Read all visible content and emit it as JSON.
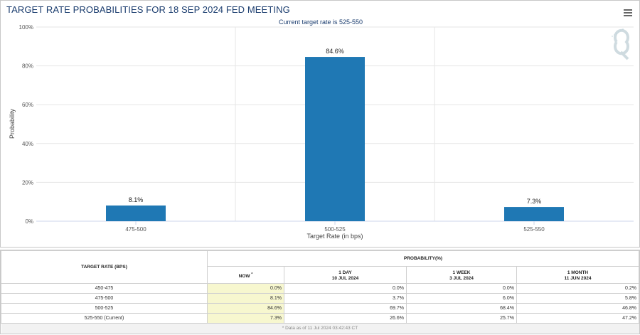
{
  "title": "TARGET RATE PROBABILITIES FOR 18 SEP 2024 FED MEETING",
  "menu_icon": "hamburger-menu-icon",
  "watermark_icon": "q-logo-icon",
  "chart_data": {
    "type": "bar",
    "subtitle": "Current target rate is 525-550",
    "categories": [
      "475-500",
      "500-525",
      "525-550"
    ],
    "values": [
      8.1,
      84.6,
      7.3
    ],
    "data_labels": [
      "8.1%",
      "84.6%",
      "7.3%"
    ],
    "xlabel": "Target Rate (in bps)",
    "ylabel": "Probability",
    "ylim": [
      0,
      100
    ],
    "yticks": [
      "0%",
      "20%",
      "40%",
      "60%",
      "80%",
      "100%"
    ],
    "grid": true,
    "bar_color": "#1f78b4"
  },
  "table": {
    "header_rate": "TARGET RATE (BPS)",
    "header_prob": "PROBABILITY(%)",
    "col_now": "NOW",
    "col_now_mark": "*",
    "col_day": "1 DAY",
    "col_day_date": "10 JUL 2024",
    "col_week": "1 WEEK",
    "col_week_date": "3 JUL 2024",
    "col_month": "1 MONTH",
    "col_month_date": "11 JUN 2024",
    "rows": [
      {
        "rate": "450-475",
        "now": "0.0%",
        "day": "0.0%",
        "week": "0.0%",
        "month": "0.2%"
      },
      {
        "rate": "475-500",
        "now": "8.1%",
        "day": "3.7%",
        "week": "6.0%",
        "month": "5.8%"
      },
      {
        "rate": "500-525",
        "now": "84.6%",
        "day": "69.7%",
        "week": "68.4%",
        "month": "46.8%"
      },
      {
        "rate": "525-550 (Current)",
        "now": "7.3%",
        "day": "26.6%",
        "week": "25.7%",
        "month": "47.2%"
      }
    ],
    "footer": "* Data as of 11 Jul 2024 03:42:43 CT"
  }
}
